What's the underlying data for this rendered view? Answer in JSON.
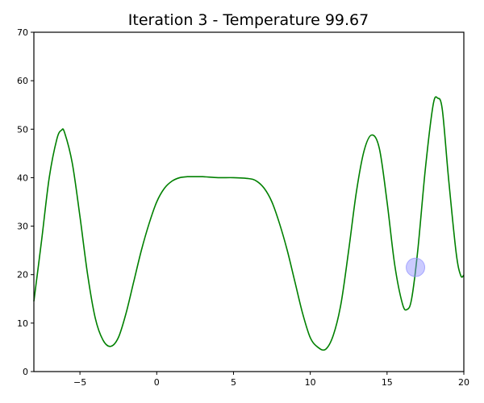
{
  "chart_data": {
    "type": "line",
    "title": "Iteration 3 - Temperature 99.67",
    "xlabel": "",
    "ylabel": "",
    "xlim": [
      -8,
      20
    ],
    "ylim": [
      0,
      70
    ],
    "xticks": [
      -5,
      0,
      5,
      10,
      15,
      20
    ],
    "yticks": [
      0,
      10,
      20,
      30,
      40,
      50,
      60,
      70
    ],
    "xtick_labels": [
      "−5",
      "0",
      "5",
      "10",
      "15",
      "20"
    ],
    "ytick_labels": [
      "0",
      "10",
      "20",
      "30",
      "40",
      "50",
      "60",
      "70"
    ],
    "grid": false,
    "series": [
      {
        "color": "#008000",
        "x": [
          -8.0,
          -7.5,
          -7.0,
          -6.5,
          -6.2,
          -6.0,
          -5.5,
          -5.0,
          -4.5,
          -4.0,
          -3.5,
          -3.0,
          -2.5,
          -2.0,
          -1.5,
          -1.0,
          -0.5,
          0.0,
          0.5,
          1.0,
          1.5,
          2.0,
          2.5,
          3.0,
          4.0,
          5.0,
          6.0,
          6.5,
          7.0,
          7.5,
          8.0,
          8.5,
          9.0,
          9.5,
          10.0,
          10.5,
          11.0,
          11.5,
          12.0,
          12.5,
          13.0,
          13.5,
          14.0,
          14.5,
          15.0,
          15.5,
          16.0,
          16.3,
          16.6,
          17.0,
          17.5,
          18.0,
          18.3,
          18.6,
          19.0,
          19.5,
          19.8,
          20.0
        ],
        "y": [
          14.5,
          27.0,
          40.0,
          48.0,
          49.8,
          49.3,
          43.0,
          32.0,
          20.0,
          11.0,
          6.5,
          5.2,
          7.0,
          12.0,
          18.5,
          25.0,
          30.5,
          35.0,
          37.8,
          39.3,
          40.0,
          40.2,
          40.2,
          40.2,
          40.0,
          40.0,
          39.8,
          39.3,
          37.8,
          35.0,
          30.5,
          25.0,
          18.5,
          12.0,
          7.0,
          5.0,
          4.6,
          7.5,
          14.0,
          25.0,
          37.0,
          45.5,
          48.8,
          46.0,
          35.0,
          22.0,
          14.0,
          12.8,
          15.0,
          25.0,
          42.0,
          55.0,
          56.4,
          54.0,
          40.0,
          24.5,
          19.8,
          19.9
        ]
      }
    ],
    "marker": {
      "x": 16.85,
      "y": 21.5,
      "color": "#8c8cff"
    }
  }
}
